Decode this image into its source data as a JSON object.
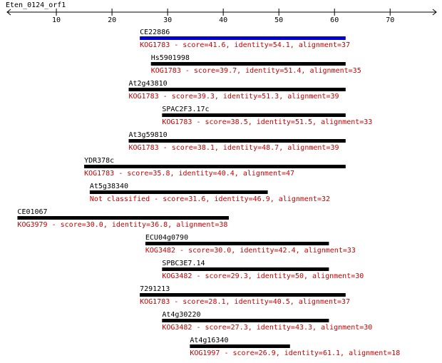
{
  "chart_data": {
    "type": "alignment",
    "title": "Eten_0124_orf1",
    "xlim": [
      1.15,
      78.3
    ],
    "xticks": [
      10,
      20,
      30,
      40,
      50,
      60,
      70
    ],
    "hits": [
      {
        "name": "CE22886",
        "label": "KOG1783 - score=41.6, identity=54.1, alignment=37",
        "start": 25,
        "end": 62,
        "color": "#0000cc"
      },
      {
        "name": "Hs5901998",
        "label": "KOG1783 - score=39.7, identity=51.4, alignment=35",
        "start": 27,
        "end": 62,
        "color": "#000000"
      },
      {
        "name": "At2g43810",
        "label": "KOG1783 - score=39.3, identity=51.3, alignment=39",
        "start": 23,
        "end": 62,
        "color": "#000000"
      },
      {
        "name": "SPAC2F3.17c",
        "label": "KOG1783 - score=38.5, identity=51.5, alignment=33",
        "start": 29,
        "end": 62,
        "color": "#000000"
      },
      {
        "name": "At3g59810",
        "label": "KOG1783 - score=38.1, identity=48.7, alignment=39",
        "start": 23,
        "end": 62,
        "color": "#000000"
      },
      {
        "name": "YDR378c",
        "label": "KOG1783 - score=35.8, identity=40.4, alignment=47",
        "start": 15,
        "end": 62,
        "color": "#000000"
      },
      {
        "name": "At5g38340",
        "label": "Not classified - score=31.6, identity=46.9, alignment=32",
        "start": 16,
        "end": 48,
        "color": "#000000"
      },
      {
        "name": "CE01067",
        "label": "KOG3979 - score=30.0, identity=36.8, alignment=38",
        "start": 3,
        "end": 41,
        "color": "#000000"
      },
      {
        "name": "ECU04g0790",
        "label": "KOG3482 - score=30.0, identity=42.4, alignment=33",
        "start": 26,
        "end": 59,
        "color": "#000000"
      },
      {
        "name": "SPBC3E7.14",
        "label": "KOG3482 - score=29.3, identity=50, alignment=30",
        "start": 29,
        "end": 59,
        "color": "#000000"
      },
      {
        "name": "7291213",
        "label": "KOG1783 - score=28.1, identity=40.5, alignment=37",
        "start": 25,
        "end": 62,
        "color": "#000000"
      },
      {
        "name": "At4g30220",
        "label": "KOG3482 - score=27.3, identity=43.3, alignment=30",
        "start": 29,
        "end": 59,
        "color": "#000000"
      },
      {
        "name": "At4g16340",
        "label": "KOG1997 - score=26.9, identity=61.1, alignment=18",
        "start": 34,
        "end": 52,
        "color": "#000000"
      }
    ]
  }
}
